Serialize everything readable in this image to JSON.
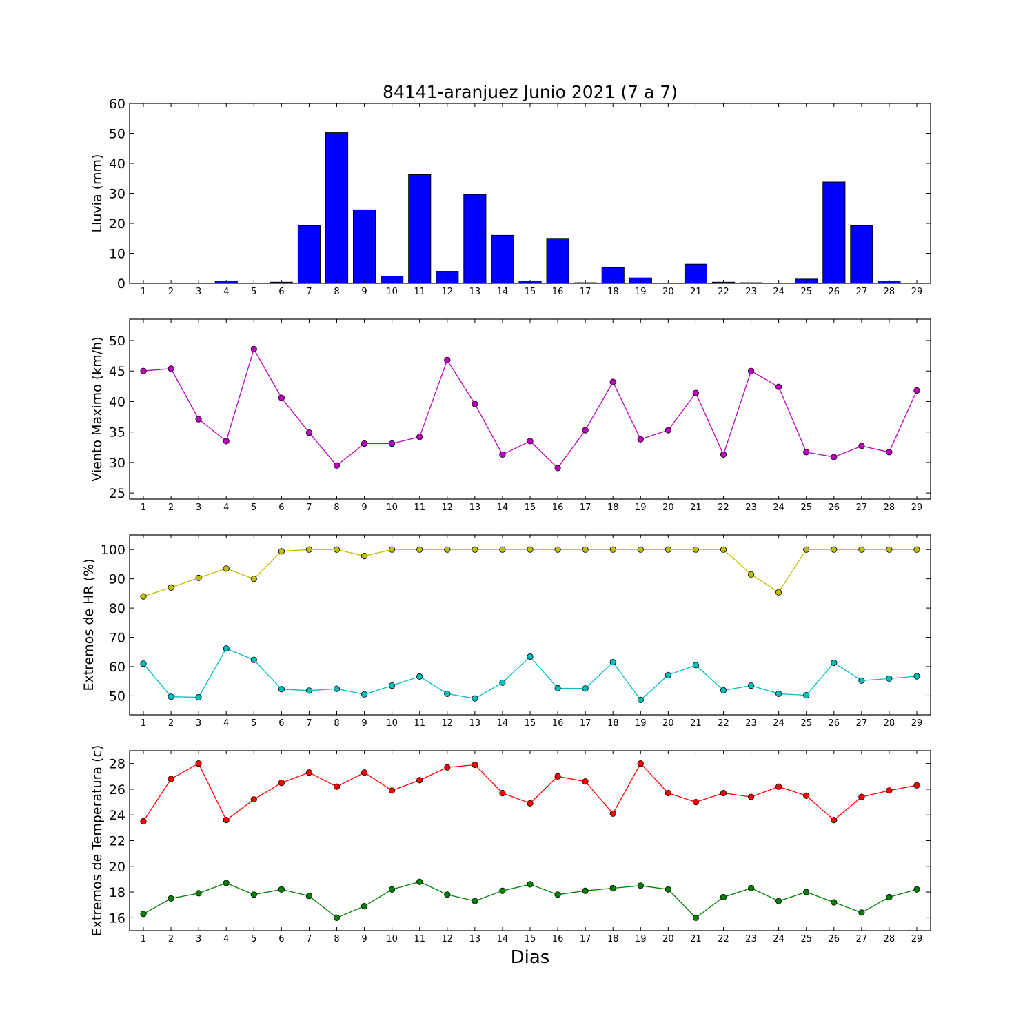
{
  "figure_title": "84141-aranjuez Junio 2021  (7 a 7)",
  "xlabel": "Dias",
  "colors": {
    "rain": "#0000ff",
    "wind": "#bf00bf",
    "hr_max": "#bfbf00",
    "hr_min": "#00bfbf",
    "temp_max": "#ff0000",
    "temp_min": "#008000"
  },
  "chart_data": [
    {
      "type": "bar",
      "ylabel": "Lluvia (mm)",
      "ylim": [
        0,
        60
      ],
      "yticks": [
        0,
        10,
        20,
        30,
        40,
        50,
        60
      ],
      "categories": [
        "1",
        "2",
        "3",
        "4",
        "5",
        "6",
        "7",
        "8",
        "9",
        "10",
        "11",
        "12",
        "13",
        "14",
        "15",
        "16",
        "17",
        "18",
        "19",
        "20",
        "21",
        "22",
        "23",
        "24",
        "25",
        "26",
        "27",
        "28",
        "29"
      ],
      "values": [
        0,
        0,
        0,
        0.8,
        0,
        0.4,
        19.2,
        50.2,
        24.5,
        2.4,
        36.2,
        4.0,
        29.6,
        16.0,
        0.8,
        15.0,
        0.2,
        5.2,
        1.8,
        0,
        6.4,
        0.4,
        0.2,
        0,
        1.4,
        33.8,
        19.2,
        0.8,
        0
      ],
      "grid": false
    },
    {
      "type": "line",
      "ylabel": "Viento Maximo (km/h)",
      "ylim": [
        24,
        53.5
      ],
      "yticks": [
        25,
        30,
        35,
        40,
        45,
        50
      ],
      "categories": [
        "1",
        "2",
        "3",
        "4",
        "5",
        "6",
        "7",
        "8",
        "9",
        "10",
        "11",
        "12",
        "13",
        "14",
        "15",
        "16",
        "17",
        "18",
        "19",
        "20",
        "21",
        "22",
        "23",
        "24",
        "25",
        "26",
        "27",
        "28",
        "29"
      ],
      "series": [
        {
          "values": [
            45.0,
            45.4,
            37.1,
            33.5,
            48.6,
            40.6,
            34.9,
            29.5,
            33.1,
            33.1,
            34.2,
            46.8,
            39.6,
            31.3,
            33.5,
            29.1,
            35.3,
            43.2,
            33.8,
            35.3,
            41.4,
            31.3,
            45.0,
            42.4,
            31.7,
            30.9,
            32.7,
            31.7,
            41.8
          ]
        }
      ],
      "grid": false
    },
    {
      "type": "line",
      "ylabel": "Extremos de HR (%)",
      "ylim": [
        43.5,
        105
      ],
      "yticks": [
        50,
        60,
        70,
        80,
        90,
        100
      ],
      "categories": [
        "1",
        "2",
        "3",
        "4",
        "5",
        "6",
        "7",
        "8",
        "9",
        "10",
        "11",
        "12",
        "13",
        "14",
        "15",
        "16",
        "17",
        "18",
        "19",
        "20",
        "21",
        "22",
        "23",
        "24",
        "25",
        "26",
        "27",
        "28",
        "29"
      ],
      "series": [
        {
          "values": [
            84,
            87,
            90.3,
            93.5,
            90,
            99.4,
            100,
            100,
            97.8,
            100,
            100,
            100,
            100,
            100,
            100,
            100,
            100,
            100,
            100,
            100,
            100,
            100,
            91.5,
            85.4,
            100,
            100,
            100,
            100,
            100
          ]
        },
        {
          "values": [
            61,
            49.7,
            49.5,
            66.2,
            62.3,
            52.3,
            51.8,
            52.4,
            50.5,
            53.5,
            56.6,
            50.7,
            49.1,
            54.5,
            63.4,
            52.6,
            52.5,
            61.5,
            48.6,
            57.1,
            60.5,
            51.9,
            53.5,
            50.7,
            50.2,
            61.3,
            55.2,
            55.9,
            56.7
          ]
        }
      ],
      "grid": false
    },
    {
      "type": "line",
      "ylabel": "Extremos de Temperatura (c)",
      "ylim": [
        15,
        29
      ],
      "yticks": [
        16,
        18,
        20,
        22,
        24,
        26,
        28
      ],
      "categories": [
        "1",
        "2",
        "3",
        "4",
        "5",
        "6",
        "7",
        "8",
        "9",
        "10",
        "11",
        "12",
        "13",
        "14",
        "15",
        "16",
        "17",
        "18",
        "19",
        "20",
        "21",
        "22",
        "23",
        "24",
        "25",
        "26",
        "27",
        "28",
        "29"
      ],
      "series": [
        {
          "values": [
            23.5,
            26.8,
            28.0,
            23.6,
            25.2,
            26.5,
            27.3,
            26.2,
            27.3,
            25.9,
            26.7,
            27.7,
            27.9,
            25.7,
            24.9,
            27.0,
            26.6,
            24.1,
            28.0,
            25.7,
            25.0,
            25.7,
            25.4,
            26.2,
            25.5,
            23.6,
            25.4,
            25.9,
            26.3
          ]
        },
        {
          "values": [
            16.3,
            17.5,
            17.9,
            18.7,
            17.8,
            18.2,
            17.7,
            16.0,
            16.9,
            18.2,
            18.8,
            17.8,
            17.3,
            18.1,
            18.6,
            17.8,
            18.1,
            18.3,
            18.5,
            18.2,
            16.0,
            17.6,
            18.3,
            17.3,
            18.0,
            17.2,
            16.4,
            17.6,
            18.2
          ]
        }
      ],
      "grid": false
    }
  ]
}
